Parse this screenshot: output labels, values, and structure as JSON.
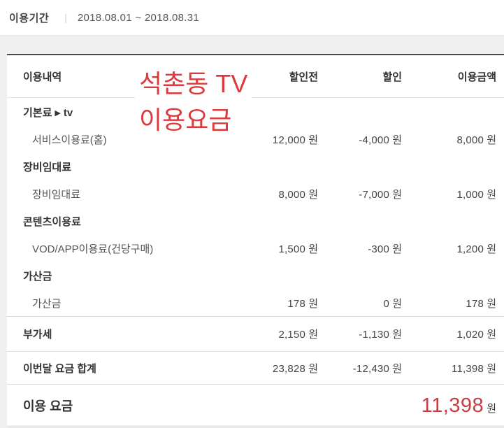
{
  "period": {
    "label": "이용기간",
    "separator": "|",
    "value": "2018.08.01 ~ 2018.08.31"
  },
  "annotation": {
    "line1": "석촌동 TV",
    "line2": "이용요금",
    "color": "#dd3a3d"
  },
  "colors": {
    "total_red": "#c63d42",
    "top_border": "#4a4a4a",
    "page_bg": "#efefef"
  },
  "table": {
    "unit": "원",
    "headers": {
      "detail": "이용내역",
      "before_discount": "할인전",
      "discount": "할인",
      "amount": "이용금액"
    },
    "groups": [
      {
        "name": "기본료",
        "marker": "▶",
        "tag": "tv",
        "items": [
          {
            "label": "서비스이용료(홈)",
            "before": "12,000",
            "discount": "-4,000",
            "amount": "8,000"
          }
        ]
      },
      {
        "name": "장비임대료",
        "items": [
          {
            "label": "장비임대료",
            "before": "8,000",
            "discount": "-7,000",
            "amount": "1,000"
          }
        ]
      },
      {
        "name": "콘텐츠이용료",
        "items": [
          {
            "label": "VOD/APP이용료(건당구매)",
            "before": "1,500",
            "discount": "-300",
            "amount": "1,200"
          }
        ]
      },
      {
        "name": "가산금",
        "items": [
          {
            "label": "가산금",
            "before": "178",
            "discount": "0",
            "amount": "178"
          }
        ]
      }
    ],
    "vat": {
      "label": "부가세",
      "before": "2,150",
      "discount": "-1,130",
      "amount": "1,020"
    },
    "monthly_total": {
      "label": "이번달 요금 합계",
      "before": "23,828",
      "discount": "-12,430",
      "amount": "11,398"
    },
    "grand_total": {
      "label": "이용 요금",
      "amount": "11,398",
      "unit": "원"
    }
  }
}
